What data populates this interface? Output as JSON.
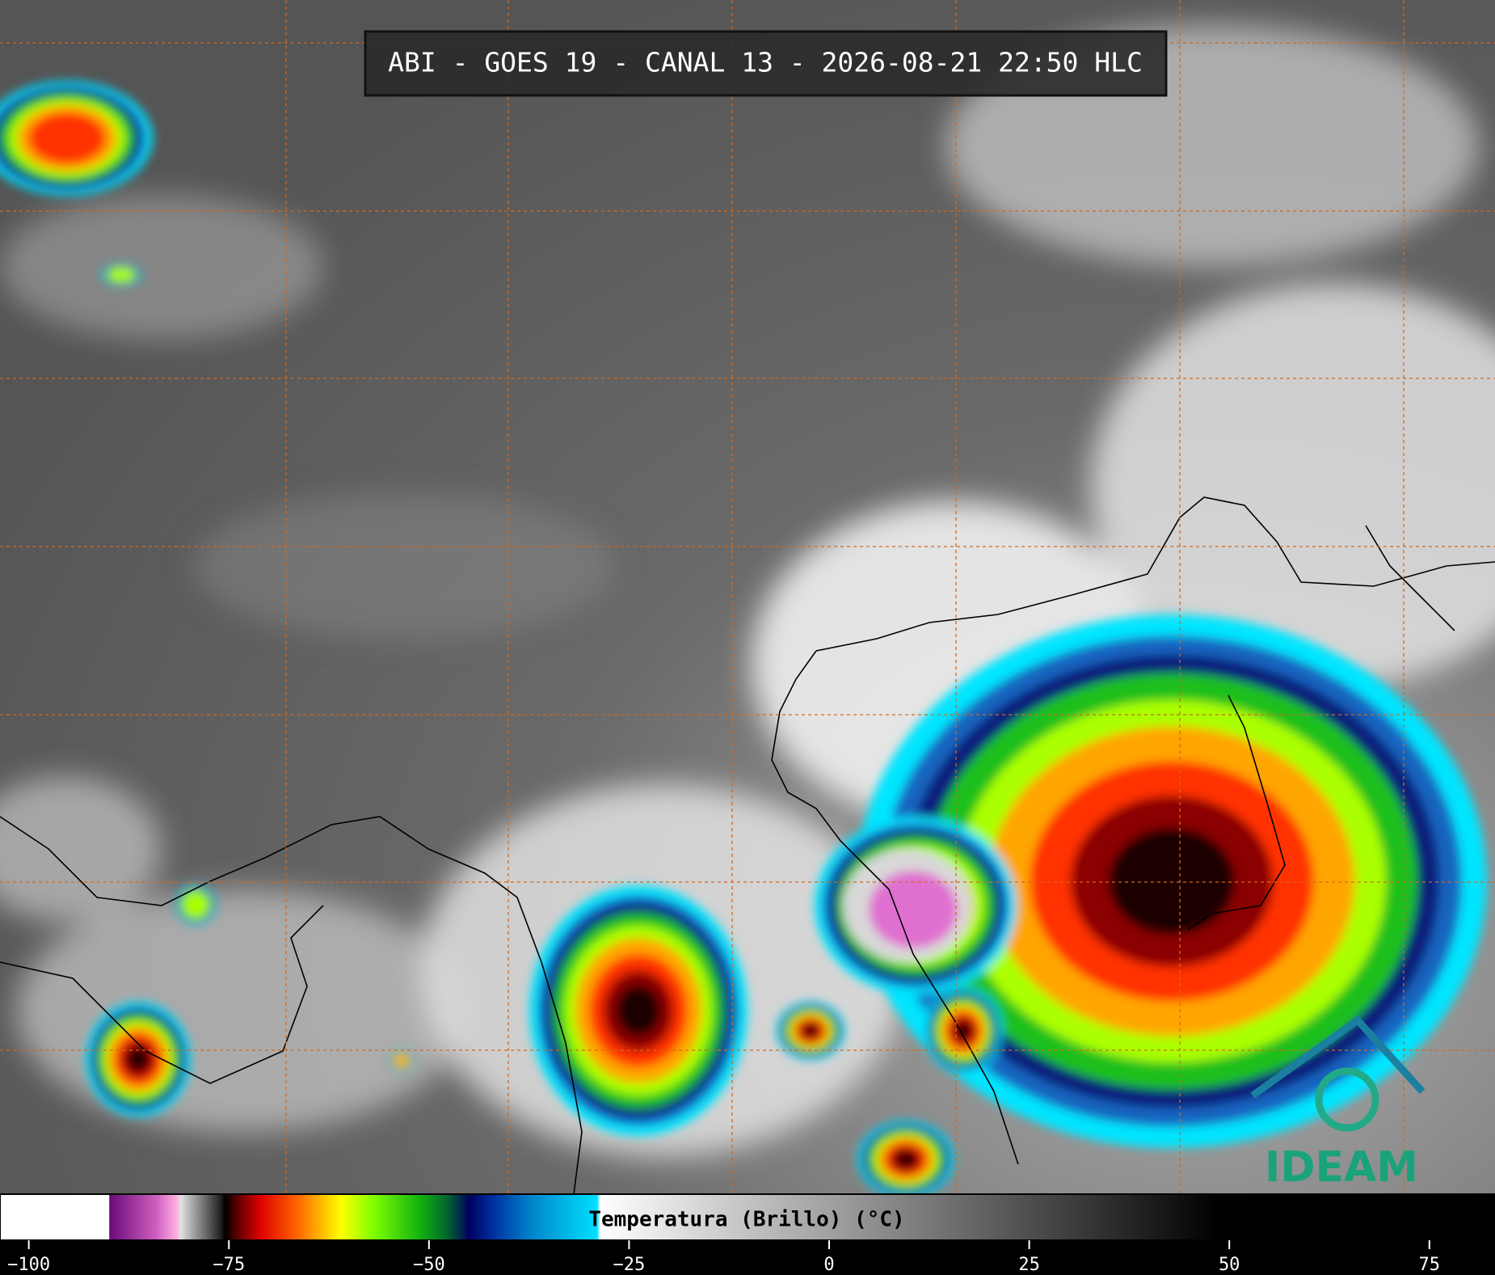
{
  "header": {
    "title": "ABI - GOES 19 - CANAL 13 - 2026-08-21 22:50 HLC"
  },
  "colorbar": {
    "label": "Temperatura (Brillo) (°C)",
    "xlim": [
      -103.6,
      83.2
    ],
    "xticks": [
      {
        "value": -100,
        "label": "−100"
      },
      {
        "value": -75,
        "label": "−75"
      },
      {
        "value": -50,
        "label": "−50"
      },
      {
        "value": -25,
        "label": "−25"
      },
      0,
      25,
      50,
      75
    ],
    "stops": [
      [
        -103.6,
        "#ffffff"
      ],
      [
        -90,
        "#ffffff"
      ],
      [
        -89.9,
        "#6a0a7a"
      ],
      [
        -84,
        "#d060c0"
      ],
      [
        -81.5,
        "#ffb0e0"
      ],
      [
        -81,
        "#e0e0e0"
      ],
      [
        -76,
        "#202020"
      ],
      [
        -75.5,
        "#000000"
      ],
      [
        -74,
        "#5a0000"
      ],
      [
        -71,
        "#e00000"
      ],
      [
        -66,
        "#ff7000"
      ],
      [
        -61,
        "#ffff00"
      ],
      [
        -57,
        "#80ff00"
      ],
      [
        -51,
        "#10b010"
      ],
      [
        -47.5,
        "#006030"
      ],
      [
        -45,
        "#000060"
      ],
      [
        -42,
        "#0030a0"
      ],
      [
        -37,
        "#0088cc"
      ],
      [
        -29,
        "#00e0ff"
      ],
      [
        -28.6,
        "#ffffff"
      ],
      [
        48.8,
        "#000000"
      ],
      [
        83.2,
        "#000000"
      ]
    ]
  },
  "logo": "IDEAM"
}
